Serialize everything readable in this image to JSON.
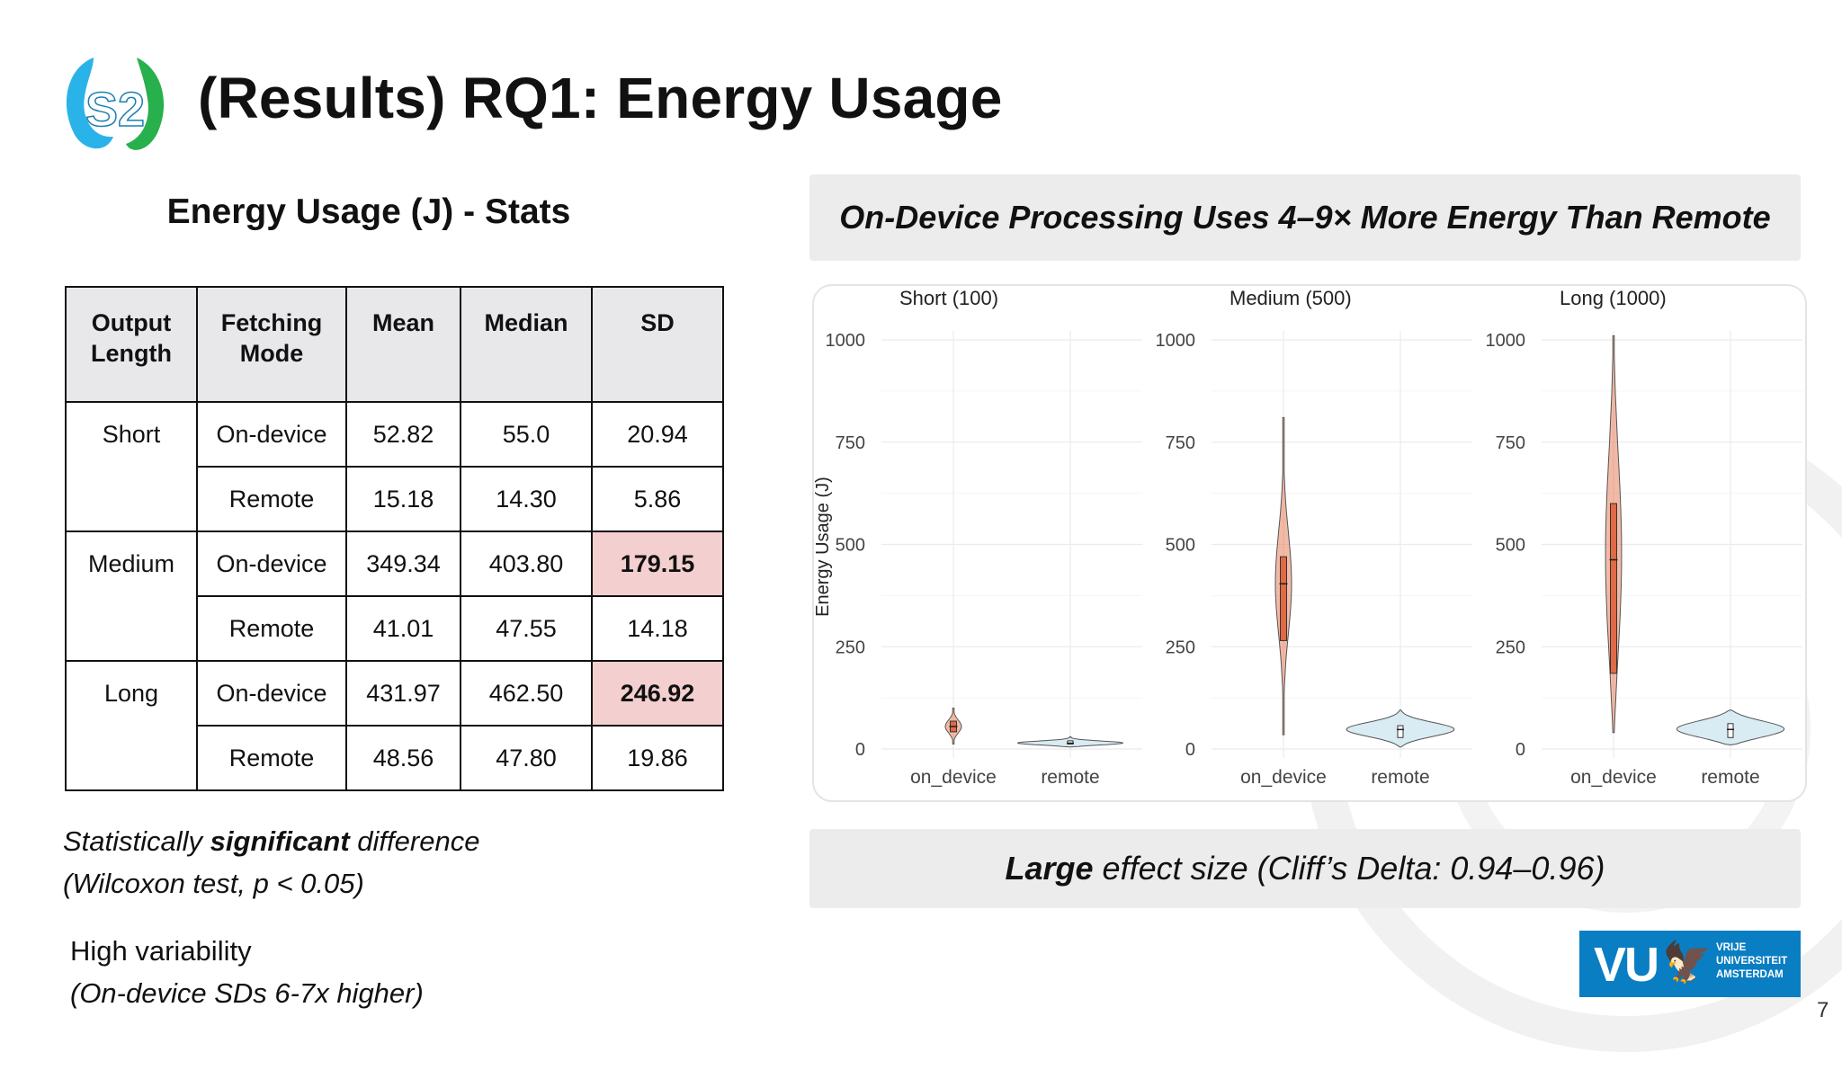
{
  "slide": {
    "title": "(Results) RQ1: Energy Usage",
    "page_number": "7"
  },
  "logo": {
    "icon": "s2-logo-icon",
    "text": "S2"
  },
  "stats": {
    "title": "Energy Usage (J) - Stats",
    "headers": {
      "output": "Output Length",
      "mode": "Fetching Mode",
      "mean": "Mean",
      "median": "Median",
      "sd": "SD"
    },
    "groups": {
      "short": {
        "label": "Short",
        "ondevice": {
          "mode": "On-device",
          "mean": "52.82",
          "median": "55.0",
          "sd": "20.94"
        },
        "remote": {
          "mode": "Remote",
          "mean": "15.18",
          "median": "14.30",
          "sd": "5.86"
        }
      },
      "medium": {
        "label": "Medium",
        "ondevice": {
          "mode": "On-device",
          "mean": "349.34",
          "median": "403.80",
          "sd": "179.15"
        },
        "remote": {
          "mode": "Remote",
          "mean": "41.01",
          "median": "47.55",
          "sd": "14.18"
        }
      },
      "long": {
        "label": "Long",
        "ondevice": {
          "mode": "On-device",
          "mean": "431.97",
          "median": "462.50",
          "sd": "246.92"
        },
        "remote": {
          "mode": "Remote",
          "mean": "48.56",
          "median": "47.80",
          "sd": "19.86"
        }
      }
    },
    "highlight_color": "#f4cfcf"
  },
  "notes": {
    "significance": {
      "pre": "Statistically ",
      "bold": "significant",
      "post": " difference",
      "line2": "(Wilcoxon test, p < 0.05)"
    },
    "variability": {
      "line1": "High variability",
      "line2": "(On-device SDs 6-7x higher)"
    }
  },
  "banners": {
    "top": "On-Device Processing Uses 4–9× More Energy Than Remote",
    "bottom": {
      "bold": "Large",
      "rest": " effect size  (Cliff’s Delta: 0.94–0.96)"
    }
  },
  "chart_data": {
    "type": "violin",
    "ylabel": "Energy Usage (J)",
    "ylim": [
      0,
      1000
    ],
    "yticks": [
      "0",
      "250",
      "500",
      "750",
      "1000"
    ],
    "categories": [
      "on_device",
      "remote"
    ],
    "grid": true,
    "colors": {
      "on_device": "#e8815c",
      "remote": "#cfe6f0"
    },
    "panels": [
      {
        "title": "Short (100)",
        "groups": [
          {
            "name": "on_device",
            "min": 12,
            "q1": 42,
            "median": 55,
            "q3": 68,
            "max": 100
          },
          {
            "name": "remote",
            "min": 5,
            "q1": 12,
            "median": 14.3,
            "q3": 20,
            "max": 30
          }
        ]
      },
      {
        "title": "Medium (500)",
        "groups": [
          {
            "name": "on_device",
            "min": 35,
            "q1": 265,
            "median": 403.8,
            "q3": 470,
            "max": 810
          },
          {
            "name": "remote",
            "min": 5,
            "q1": 28,
            "median": 47.55,
            "q3": 57,
            "max": 95
          }
        ]
      },
      {
        "title": "Long (1000)",
        "groups": [
          {
            "name": "on_device",
            "min": 40,
            "q1": 185,
            "median": 462.5,
            "q3": 600,
            "max": 1010
          },
          {
            "name": "remote",
            "min": 10,
            "q1": 28,
            "median": 47.8,
            "q3": 62,
            "max": 95
          }
        ]
      }
    ]
  },
  "vu_logo": {
    "mark": "VU",
    "line1": "VRIJE",
    "line2": "UNIVERSITEIT",
    "line3": "AMSTERDAM"
  }
}
